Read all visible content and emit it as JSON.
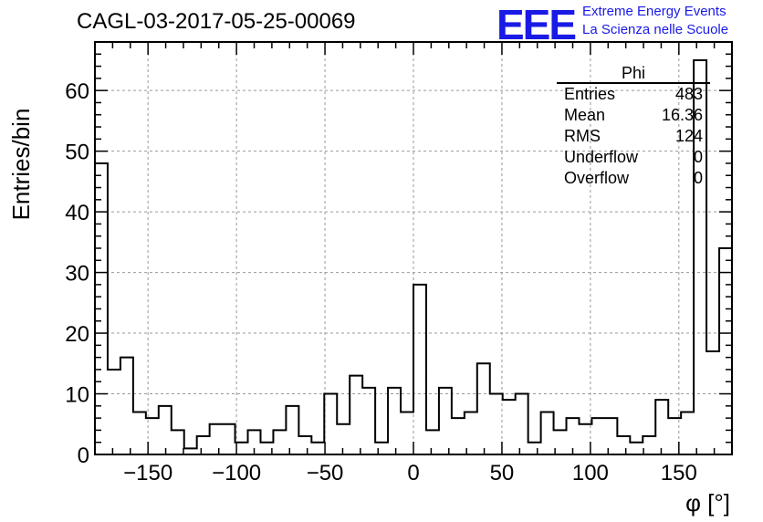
{
  "title": "CAGL-03-2017-05-25-00069",
  "logo": {
    "mark": "EEE",
    "line1": "Extreme Energy Events",
    "line2": "La Scienza nelle Scuole",
    "color": "#1a1ae6"
  },
  "stats": {
    "name": "Phi",
    "rows": [
      {
        "label": "Entries",
        "value": "483"
      },
      {
        "label": "Mean",
        "value": "16.36"
      },
      {
        "label": "RMS",
        "value": "124"
      },
      {
        "label": "Underflow",
        "value": "0"
      },
      {
        "label": "Overflow",
        "value": "0"
      }
    ]
  },
  "chart_data": {
    "type": "bar",
    "histogram": true,
    "xlabel": "φ [°]",
    "ylabel": "Entries/bin",
    "xlim": [
      -180,
      180
    ],
    "ylim": [
      0,
      68
    ],
    "bin_width": 7.2,
    "xticks": [
      -150,
      -100,
      -50,
      0,
      50,
      100,
      150
    ],
    "yticks": [
      0,
      10,
      20,
      30,
      40,
      50,
      60
    ],
    "grid": true,
    "values": [
      48,
      14,
      16,
      7,
      6,
      8,
      4,
      1,
      3,
      5,
      5,
      2,
      4,
      2,
      4,
      8,
      3,
      2,
      10,
      5,
      13,
      11,
      2,
      11,
      7,
      28,
      4,
      11,
      6,
      7,
      15,
      10,
      9,
      10,
      2,
      7,
      4,
      6,
      5,
      6,
      6,
      3,
      2,
      3,
      9,
      6,
      7,
      65,
      17,
      34
    ]
  }
}
